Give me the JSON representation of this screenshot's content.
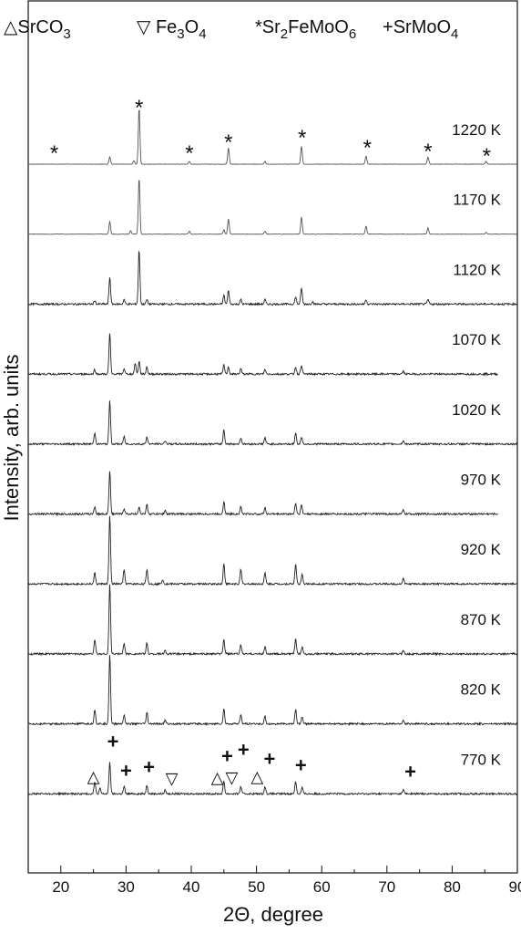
{
  "chart_data": {
    "type": "line",
    "xlabel": "2Θ, degree",
    "ylabel": "Intensity, arb. units",
    "xlim": [
      15,
      90
    ],
    "xticks": [
      20,
      30,
      40,
      50,
      60,
      70,
      80,
      90
    ],
    "legend": [
      {
        "symbol": "△",
        "label": "SrCO3",
        "formula": "SrCO",
        "sub": "3"
      },
      {
        "symbol": "▽",
        "label": "Fe3O4",
        "formula": "Fe",
        "sub": "3",
        "formula2": "O",
        "sub2": "4"
      },
      {
        "symbol": "*",
        "label": "Sr2FeMoO6",
        "formula": "Sr",
        "sub": "2",
        "formula2": "FeMoO",
        "sub2": "6"
      },
      {
        "symbol": "+",
        "label": "SrMoO4",
        "formula": "SrMoO",
        "sub": "4"
      }
    ],
    "series": [
      {
        "name": "1220 K",
        "xmax": 90,
        "noise": 0.25,
        "peaks": [
          [
            27.5,
            8
          ],
          [
            31.2,
            4
          ],
          [
            32.0,
            62
          ],
          [
            39.7,
            3
          ],
          [
            45.7,
            18
          ],
          [
            51.3,
            3
          ],
          [
            56.9,
            20
          ],
          [
            66.8,
            9
          ],
          [
            76.3,
            8
          ],
          [
            85.2,
            3
          ]
        ]
      },
      {
        "name": "1170 K",
        "xmax": 90,
        "noise": 0.25,
        "peaks": [
          [
            27.5,
            14
          ],
          [
            30.7,
            4
          ],
          [
            32.0,
            62
          ],
          [
            39.7,
            3
          ],
          [
            45.0,
            5
          ],
          [
            45.7,
            17
          ],
          [
            51.3,
            3
          ],
          [
            56.9,
            19
          ],
          [
            66.8,
            9
          ],
          [
            76.3,
            7
          ],
          [
            85.2,
            2
          ]
        ]
      },
      {
        "name": "1120 K",
        "xmax": 90,
        "noise": 1.0,
        "peaks": [
          [
            25.2,
            4
          ],
          [
            27.5,
            30
          ],
          [
            29.7,
            5
          ],
          [
            32.0,
            60
          ],
          [
            33.2,
            5
          ],
          [
            45.0,
            10
          ],
          [
            45.7,
            15
          ],
          [
            47.6,
            5
          ],
          [
            51.3,
            5
          ],
          [
            56.0,
            8
          ],
          [
            56.9,
            18
          ],
          [
            58.6,
            3
          ],
          [
            66.8,
            5
          ],
          [
            76.3,
            5
          ]
        ]
      },
      {
        "name": "1070 K",
        "xmax": 87,
        "noise": 1.0,
        "peaks": [
          [
            25.2,
            5
          ],
          [
            27.5,
            45
          ],
          [
            29.7,
            6
          ],
          [
            31.4,
            12
          ],
          [
            32.0,
            14
          ],
          [
            33.2,
            8
          ],
          [
            45.0,
            10
          ],
          [
            45.7,
            8
          ],
          [
            47.6,
            6
          ],
          [
            51.3,
            5
          ],
          [
            56.0,
            8
          ],
          [
            56.9,
            10
          ],
          [
            72.5,
            3
          ]
        ]
      },
      {
        "name": "1020 K",
        "xmax": 90,
        "noise": 1.0,
        "peaks": [
          [
            25.2,
            12
          ],
          [
            27.5,
            48
          ],
          [
            29.7,
            8
          ],
          [
            33.2,
            8
          ],
          [
            36.0,
            4
          ],
          [
            45.0,
            16
          ],
          [
            47.6,
            7
          ],
          [
            51.3,
            7
          ],
          [
            56.0,
            12
          ],
          [
            56.9,
            8
          ],
          [
            72.5,
            4
          ]
        ]
      },
      {
        "name": "970 K",
        "xmax": 87,
        "noise": 1.0,
        "peaks": [
          [
            25.2,
            8
          ],
          [
            27.5,
            48
          ],
          [
            29.7,
            6
          ],
          [
            32.0,
            8
          ],
          [
            33.2,
            10
          ],
          [
            36.0,
            4
          ],
          [
            45.0,
            14
          ],
          [
            47.6,
            8
          ],
          [
            51.3,
            7
          ],
          [
            56.0,
            12
          ],
          [
            56.9,
            10
          ],
          [
            72.5,
            4
          ]
        ]
      },
      {
        "name": "920 K",
        "xmax": 90,
        "noise": 1.0,
        "peaks": [
          [
            25.2,
            12
          ],
          [
            27.5,
            75
          ],
          [
            29.7,
            15
          ],
          [
            33.2,
            16
          ],
          [
            35.6,
            5
          ],
          [
            45.0,
            22
          ],
          [
            47.6,
            16
          ],
          [
            51.3,
            12
          ],
          [
            56.0,
            22
          ],
          [
            57.0,
            10
          ],
          [
            72.5,
            6
          ]
        ]
      },
      {
        "name": "870 K",
        "xmax": 90,
        "noise": 1.0,
        "peaks": [
          [
            25.2,
            16
          ],
          [
            27.5,
            77
          ],
          [
            29.7,
            12
          ],
          [
            33.2,
            12
          ],
          [
            36.0,
            4
          ],
          [
            45.0,
            16
          ],
          [
            47.6,
            10
          ],
          [
            51.3,
            8
          ],
          [
            56.0,
            16
          ],
          [
            57.0,
            8
          ],
          [
            72.5,
            4
          ]
        ]
      },
      {
        "name": "820 K",
        "xmax": 90,
        "noise": 1.0,
        "peaks": [
          [
            25.2,
            16
          ],
          [
            27.5,
            77
          ],
          [
            29.7,
            10
          ],
          [
            33.2,
            12
          ],
          [
            36.0,
            4
          ],
          [
            45.0,
            16
          ],
          [
            47.6,
            10
          ],
          [
            51.3,
            8
          ],
          [
            56.0,
            16
          ],
          [
            57.0,
            8
          ],
          [
            72.5,
            4
          ]
        ]
      },
      {
        "name": "770 K",
        "xmax": 90,
        "noise": 1.0,
        "peaks": [
          [
            25.2,
            13
          ],
          [
            26.0,
            6
          ],
          [
            27.5,
            35
          ],
          [
            29.7,
            8
          ],
          [
            33.2,
            10
          ],
          [
            36.0,
            4
          ],
          [
            45.0,
            14
          ],
          [
            47.6,
            8
          ],
          [
            51.3,
            8
          ],
          [
            56.0,
            14
          ],
          [
            57.0,
            7
          ],
          [
            72.5,
            5
          ]
        ]
      }
    ],
    "markers": [
      {
        "symbol": "*",
        "x": 19.0,
        "series": 0,
        "dy": 16
      },
      {
        "symbol": "*",
        "x": 32.0,
        "series": 0,
        "dy": 66
      },
      {
        "symbol": "*",
        "x": 39.7,
        "series": 0,
        "dy": 16
      },
      {
        "symbol": "*",
        "x": 45.7,
        "series": 0,
        "dy": 28
      },
      {
        "symbol": "*",
        "x": 57.0,
        "series": 0,
        "dy": 33
      },
      {
        "symbol": "*",
        "x": 67.0,
        "series": 0,
        "dy": 22
      },
      {
        "symbol": "*",
        "x": 76.3,
        "series": 0,
        "dy": 18
      },
      {
        "symbol": "*",
        "x": 85.3,
        "series": 0,
        "dy": 13
      },
      {
        "symbol": "+",
        "x": 28.0,
        "series": 9,
        "dy": 57
      },
      {
        "symbol": "+",
        "x": 30.0,
        "series": 9,
        "dy": 25
      },
      {
        "symbol": "+",
        "x": 33.5,
        "series": 9,
        "dy": 29
      },
      {
        "symbol": "+",
        "x": 45.5,
        "series": 9,
        "dy": 41
      },
      {
        "symbol": "+",
        "x": 48.0,
        "series": 9,
        "dy": 48
      },
      {
        "symbol": "+",
        "x": 52.0,
        "series": 9,
        "dy": 38
      },
      {
        "symbol": "+",
        "x": 56.8,
        "series": 9,
        "dy": 31
      },
      {
        "symbol": "+",
        "x": 73.6,
        "series": 9,
        "dy": 24
      },
      {
        "symbol": "△",
        "x": 25.0,
        "series": 9,
        "dy": 20
      },
      {
        "symbol": "▽",
        "x": 37.0,
        "series": 9,
        "dy": 18
      },
      {
        "symbol": "△",
        "x": 44.0,
        "series": 9,
        "dy": 19
      },
      {
        "symbol": "▽",
        "x": 46.2,
        "series": 9,
        "dy": 19
      },
      {
        "symbol": "△",
        "x": 50.1,
        "series": 9,
        "dy": 20
      }
    ]
  }
}
